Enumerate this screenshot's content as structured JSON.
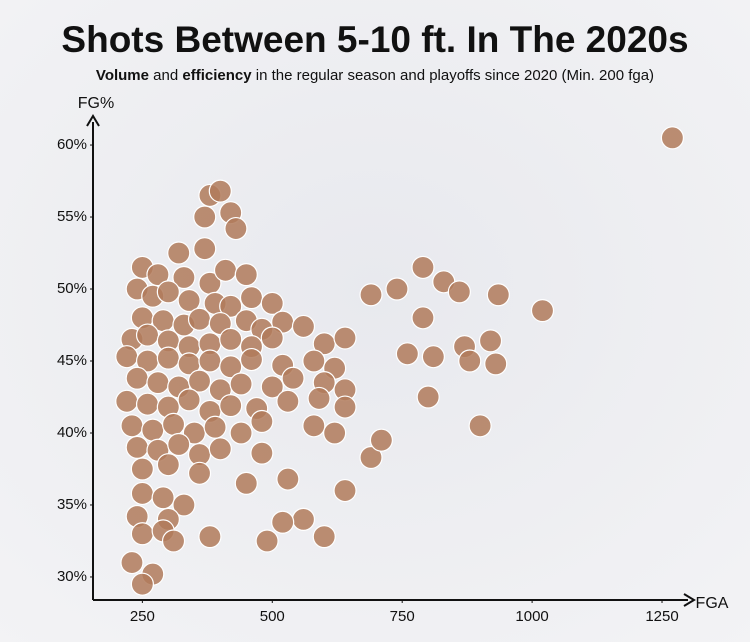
{
  "chart_data": {
    "type": "scatter",
    "title": "Shots Between 5-10 ft. In The 2020s",
    "subtitle": [
      "Volume",
      " and ",
      "efficiency",
      " in the regular season and playoffs since 2020 (Min. 200 fga)"
    ],
    "x_label": "FGA",
    "y_label": "FG%",
    "xlim": [
      155,
      1300
    ],
    "ylim": [
      28.4,
      61.6
    ],
    "xticks": [
      250,
      500,
      750,
      1000,
      1250
    ],
    "yticks": [
      {
        "value": 30,
        "label": "30%"
      },
      {
        "value": 35,
        "label": "35%"
      },
      {
        "value": 40,
        "label": "40%"
      },
      {
        "value": 45,
        "label": "45%"
      },
      {
        "value": 50,
        "label": "50%"
      },
      {
        "value": 55,
        "label": "55%"
      },
      {
        "value": 60,
        "label": "60%"
      }
    ],
    "color": "#b07a5a",
    "x": [
      380,
      400,
      420,
      370,
      430,
      320,
      370,
      250,
      280,
      330,
      380,
      410,
      450,
      240,
      270,
      300,
      340,
      390,
      420,
      460,
      500,
      250,
      290,
      330,
      360,
      400,
      450,
      480,
      520,
      560,
      230,
      260,
      300,
      340,
      380,
      420,
      460,
      500,
      600,
      640,
      220,
      260,
      300,
      340,
      380,
      420,
      460,
      520,
      580,
      620,
      240,
      280,
      320,
      360,
      400,
      440,
      500,
      540,
      600,
      640,
      220,
      260,
      300,
      340,
      380,
      420,
      470,
      530,
      590,
      640,
      230,
      270,
      310,
      350,
      390,
      440,
      480,
      580,
      620,
      240,
      280,
      320,
      360,
      400,
      480,
      690,
      250,
      300,
      360,
      450,
      530,
      640,
      250,
      290,
      330,
      240,
      300,
      560,
      250,
      290,
      310,
      380,
      490,
      600,
      520,
      230,
      270,
      250,
      690,
      740,
      790,
      830,
      860,
      935,
      1020,
      790,
      870,
      920,
      810,
      760,
      880,
      930,
      800,
      900,
      710,
      1270
    ],
    "values": [
      56.5,
      56.8,
      55.3,
      55.0,
      54.2,
      52.5,
      52.8,
      51.5,
      51.0,
      50.8,
      50.4,
      51.3,
      51.0,
      50.0,
      49.5,
      49.8,
      49.2,
      49.0,
      48.8,
      49.4,
      49.0,
      48.0,
      47.8,
      47.5,
      47.9,
      47.6,
      47.8,
      47.2,
      47.7,
      47.4,
      46.5,
      46.8,
      46.4,
      46.0,
      46.2,
      46.5,
      46.0,
      46.6,
      46.2,
      46.6,
      45.3,
      45.0,
      45.2,
      44.8,
      45.0,
      44.6,
      45.1,
      44.7,
      45.0,
      44.5,
      43.8,
      43.5,
      43.2,
      43.6,
      43.0,
      43.4,
      43.2,
      43.8,
      43.5,
      43.0,
      42.2,
      42.0,
      41.8,
      42.3,
      41.5,
      41.9,
      41.7,
      42.2,
      42.4,
      41.8,
      40.5,
      40.2,
      40.6,
      40.0,
      40.4,
      40.0,
      40.8,
      40.5,
      40.0,
      39.0,
      38.8,
      39.2,
      38.5,
      38.9,
      38.6,
      38.3,
      37.5,
      37.8,
      37.2,
      36.5,
      36.8,
      36.0,
      35.8,
      35.5,
      35.0,
      34.2,
      34.0,
      34.0,
      33.0,
      33.2,
      32.5,
      32.8,
      32.5,
      32.8,
      33.8,
      31.0,
      30.2,
      29.5,
      49.6,
      50.0,
      51.5,
      50.5,
      49.8,
      49.6,
      48.5,
      48.0,
      46.0,
      46.4,
      45.3,
      45.5,
      45.0,
      44.8,
      42.5,
      40.5,
      39.5,
      60.5
    ]
  }
}
